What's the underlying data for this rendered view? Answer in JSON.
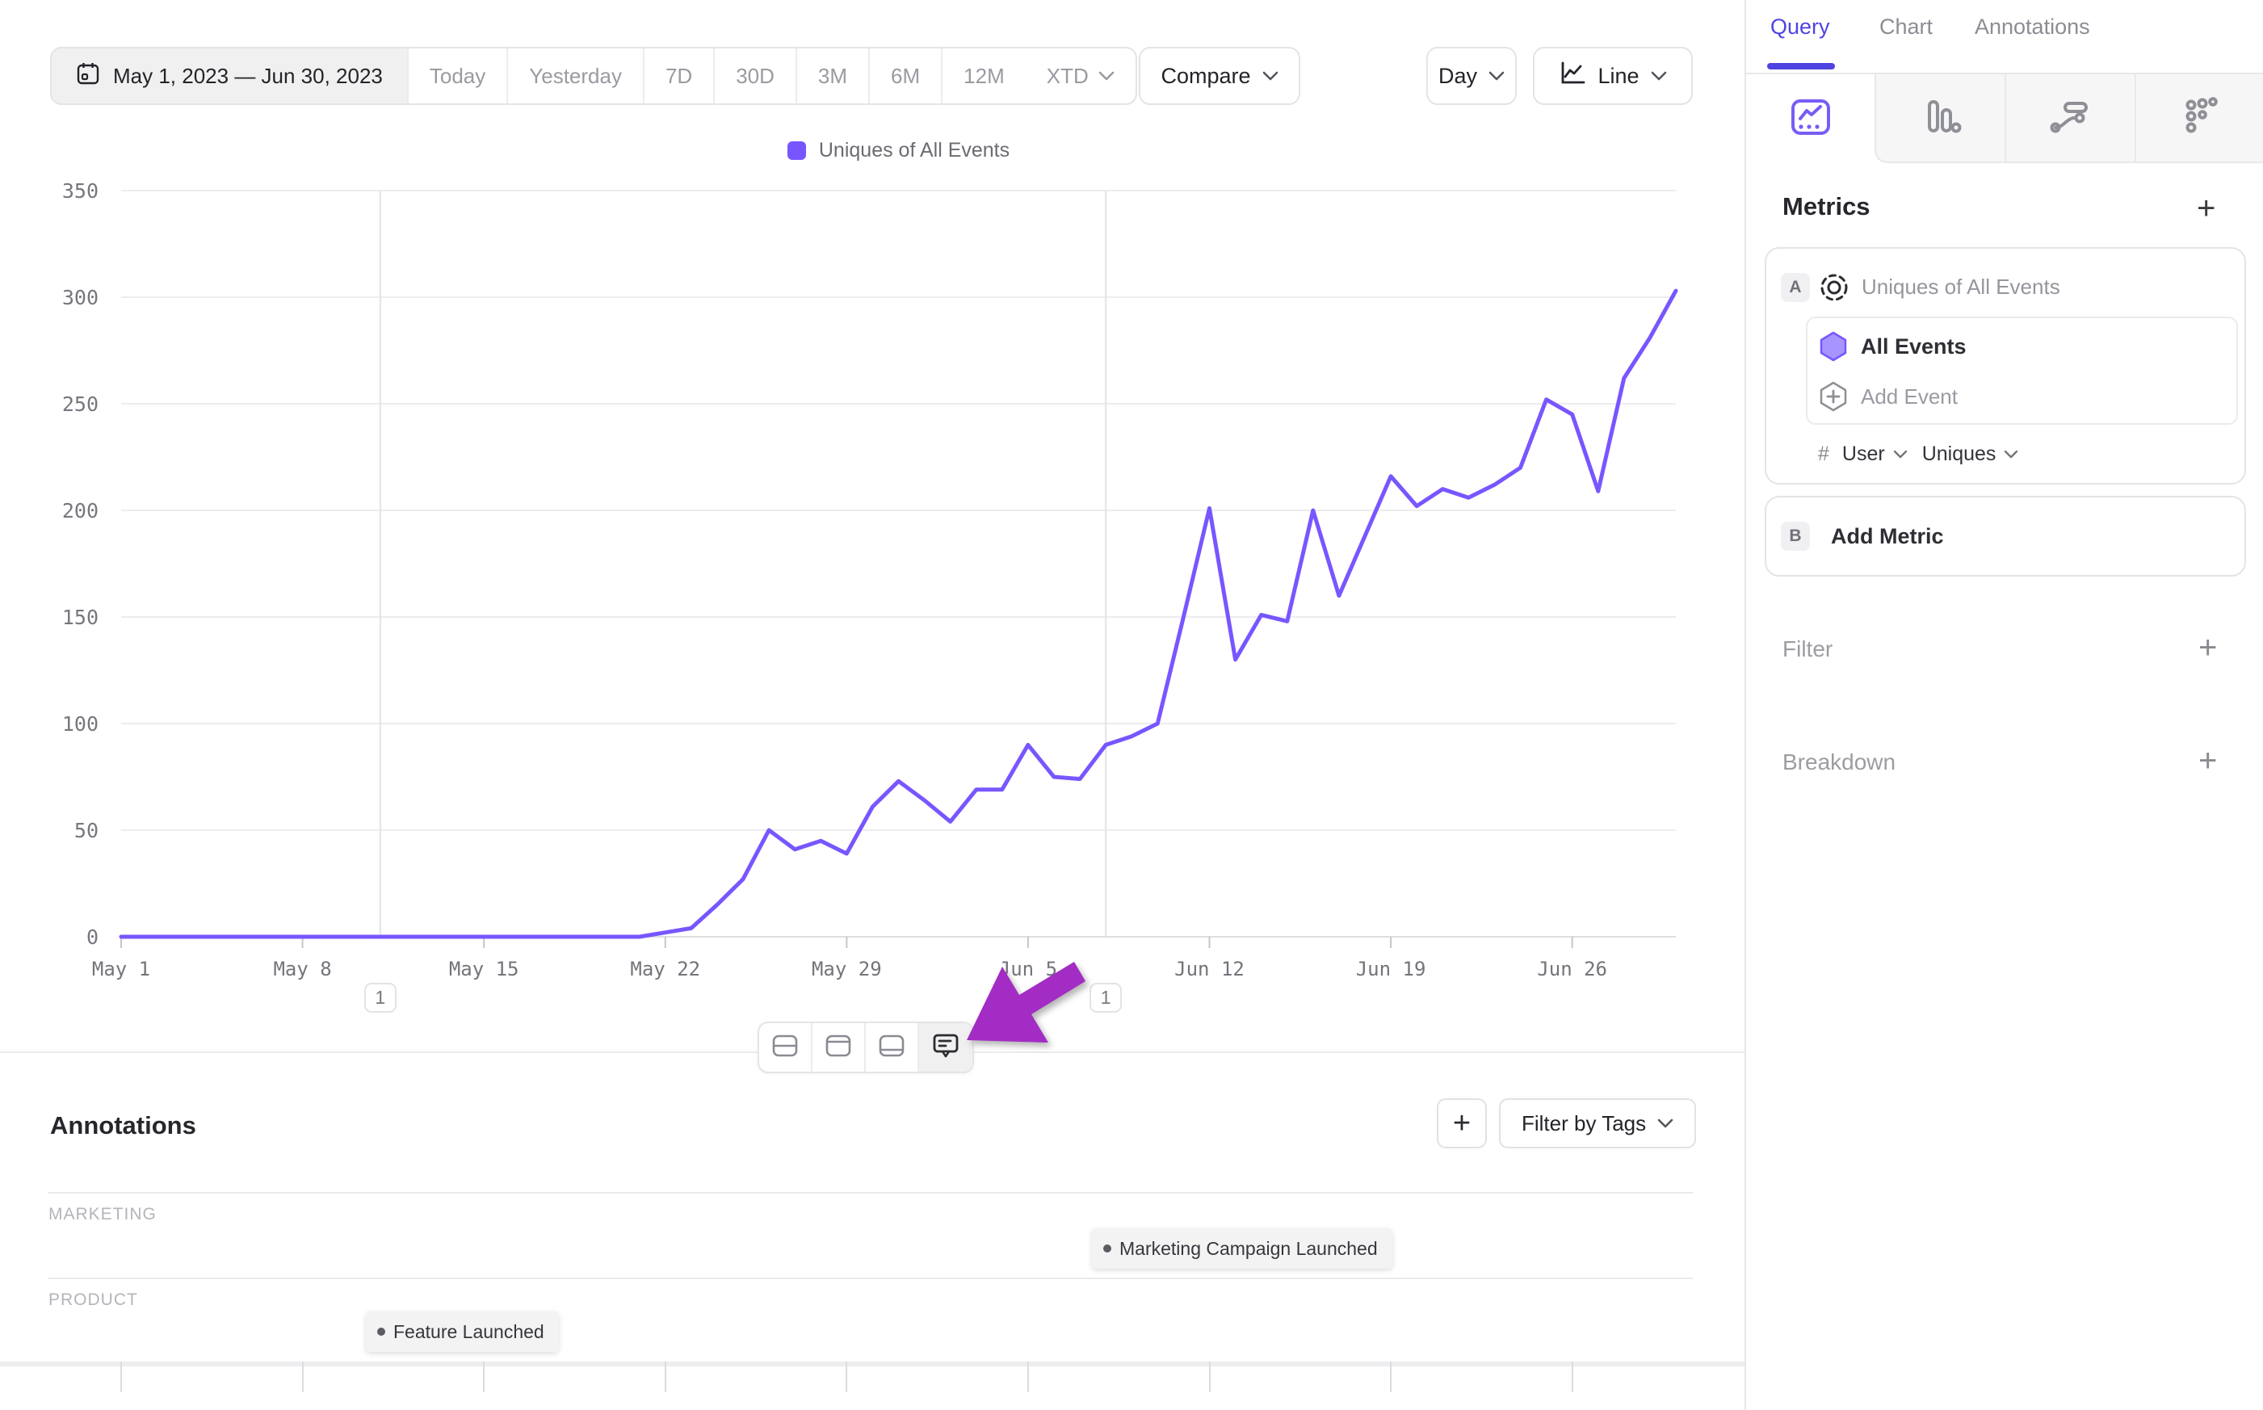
{
  "toolbar": {
    "date_range": "May 1, 2023 — Jun 30, 2023",
    "presets": [
      "Today",
      "Yesterday",
      "7D",
      "30D",
      "3M",
      "6M",
      "12M"
    ],
    "xtd": "XTD",
    "compare": "Compare",
    "granularity": "Day",
    "chart_type": "Line"
  },
  "legend": {
    "label": "Uniques of All Events",
    "color": "#7856ff"
  },
  "chart_data": {
    "type": "line",
    "title": "Uniques of All Events",
    "x_start": "May 1",
    "x_end": "Jun 30",
    "ylim": [
      0,
      350
    ],
    "yticks": [
      0,
      50,
      100,
      150,
      200,
      250,
      300,
      350
    ],
    "xticks": [
      {
        "label": "May 1",
        "day_index": 0
      },
      {
        "label": "May 8",
        "day_index": 7
      },
      {
        "label": "May 15",
        "day_index": 14
      },
      {
        "label": "May 22",
        "day_index": 21
      },
      {
        "label": "May 29",
        "day_index": 28
      },
      {
        "label": "Jun 5",
        "day_index": 35
      },
      {
        "label": "Jun 12",
        "day_index": 42
      },
      {
        "label": "Jun 19",
        "day_index": 49
      },
      {
        "label": "Jun 26",
        "day_index": 56
      }
    ],
    "series": [
      {
        "name": "Uniques of All Events",
        "values": [
          0,
          0,
          0,
          0,
          0,
          0,
          0,
          0,
          0,
          0,
          0,
          0,
          0,
          0,
          0,
          0,
          0,
          0,
          0,
          0,
          0,
          2,
          4,
          15,
          27,
          50,
          41,
          45,
          39,
          61,
          73,
          64,
          54,
          69,
          69,
          90,
          75,
          74,
          90,
          94,
          100,
          150,
          201,
          130,
          151,
          148,
          200,
          160,
          188,
          216,
          202,
          210,
          206,
          212,
          220,
          252,
          245,
          209,
          262,
          281,
          303
        ]
      }
    ],
    "line_color": "#7856ff",
    "grid": "horizontal",
    "legend_position": "top-center",
    "annotation_markers": [
      {
        "day_index": 10,
        "count": "1"
      },
      {
        "day_index": 38,
        "count": "1"
      }
    ]
  },
  "chart_toolbar": {
    "icons": [
      "split-rows",
      "panel-top",
      "panel-bottom",
      "comments"
    ],
    "active": "comments",
    "arrow_color": "#a32cc4"
  },
  "annotations_panel": {
    "title": "Annotations",
    "add_label": "+",
    "filter_label": "Filter by Tags",
    "groups": [
      {
        "label": "MARKETING",
        "items": [
          {
            "text": "Marketing Campaign Launched"
          }
        ]
      },
      {
        "label": "PRODUCT",
        "items": [
          {
            "text": "Feature Launched"
          }
        ]
      }
    ]
  },
  "sidebar": {
    "tabs": [
      "Query",
      "Chart",
      "Annotations"
    ],
    "active_tab": "Query",
    "view_icons": [
      "insights",
      "funnels",
      "flows",
      "retention"
    ],
    "active_view": "insights",
    "metrics": {
      "title": "Metrics",
      "add": "+",
      "metric_a": {
        "badge": "A",
        "name": "Uniques of All Events",
        "event_name": "All Events",
        "add_event": "Add Event",
        "count_symbol": "#",
        "entity": "User",
        "aggregation": "Uniques"
      },
      "metric_b": {
        "badge": "B",
        "label": "Add Metric"
      }
    },
    "filter": {
      "label": "Filter",
      "add": "+"
    },
    "breakdown": {
      "label": "Breakdown",
      "add": "+"
    }
  },
  "colors": {
    "accent_purple": "#4f44e0",
    "line_purple": "#7856ff",
    "arrow_purple": "#a32cc4",
    "grid": "#ededef",
    "border": "#e4e4e7",
    "text_dark": "#26262c",
    "text_gray": "#8c8c94"
  }
}
